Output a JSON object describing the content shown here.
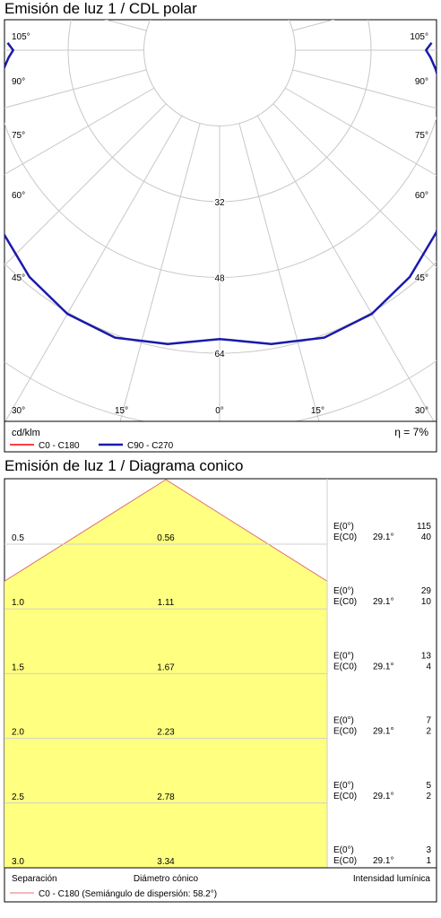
{
  "polar": {
    "title": "Emisión de luz 1 / CDL polar",
    "units": "cd/klm",
    "efficiency": "η = 7%",
    "legend": [
      {
        "label": "C0 - C180",
        "color": "#ff0000"
      },
      {
        "label": "C90 - C270",
        "color": "#1a1aaa"
      }
    ]
  },
  "cone": {
    "title": "Emisión de luz 1 / Diagrama conico",
    "footer": {
      "separation_label": "Separación",
      "diameter_label": "Diámetro cónico",
      "intensity_label": "Intensidad lumínica",
      "legend_label": "C0 - C180 (Semiángulo de dispersión: 58.2°)",
      "legend_color": "#e07070"
    }
  },
  "chart_data": [
    {
      "type": "polar",
      "title": "Emisión de luz 1 / CDL polar",
      "unit": "cd/klm",
      "radial_ticks": [
        32,
        48,
        64
      ],
      "angle_labels_left": [
        "105°",
        "90°",
        "75°",
        "60°",
        "45°",
        "30°",
        "15°"
      ],
      "angle_labels_right": [
        "105°",
        "90°",
        "75°",
        "60°",
        "45°",
        "30°",
        "15°"
      ],
      "center_label": "0°",
      "series": [
        {
          "name": "C90 - C270",
          "color": "#1a1aaa",
          "angles": [
            0,
            10,
            20,
            30,
            40,
            50,
            60,
            70,
            80,
            85,
            88,
            90,
            92
          ],
          "values": [
            61,
            63,
            64.6,
            64.3,
            62.5,
            59.8,
            56,
            51.6,
            47.6,
            45.8,
            44.6,
            43.6,
            44.8
          ]
        },
        {
          "name": "C0 - C180",
          "color": "#ff0000",
          "angles": [],
          "values": []
        }
      ]
    },
    {
      "type": "cone",
      "title": "Emisión de luz 1 / Diagrama conico",
      "half_angle": "58.2°",
      "rows": [
        {
          "separation": "0.5",
          "diameter": "0.56",
          "e0_label": "E(0°)",
          "e0": "115",
          "ec0_label": "E(C0)",
          "angle": "29.1°",
          "ec0": "40"
        },
        {
          "separation": "1.0",
          "diameter": "1.11",
          "e0_label": "E(0°)",
          "e0": "29",
          "ec0_label": "E(C0)",
          "angle": "29.1°",
          "ec0": "10"
        },
        {
          "separation": "1.5",
          "diameter": "1.67",
          "e0_label": "E(0°)",
          "e0": "13",
          "ec0_label": "E(C0)",
          "angle": "29.1°",
          "ec0": "4"
        },
        {
          "separation": "2.0",
          "diameter": "2.23",
          "e0_label": "E(0°)",
          "e0": "7",
          "ec0_label": "E(C0)",
          "angle": "29.1°",
          "ec0": "2"
        },
        {
          "separation": "2.5",
          "diameter": "2.78",
          "e0_label": "E(0°)",
          "e0": "5",
          "ec0_label": "E(C0)",
          "angle": "29.1°",
          "ec0": "2"
        },
        {
          "separation": "3.0",
          "diameter": "3.34",
          "e0_label": "E(0°)",
          "e0": "3",
          "ec0_label": "E(C0)",
          "angle": "29.1°",
          "ec0": "1"
        }
      ]
    }
  ]
}
